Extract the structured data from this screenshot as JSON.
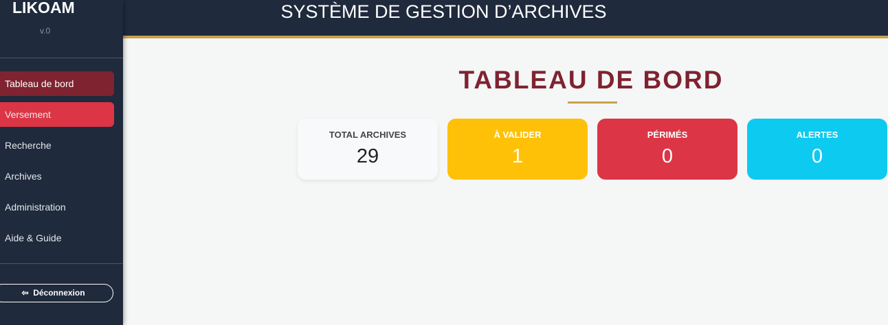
{
  "sidebar": {
    "logo": "LIKOAM",
    "version": "v.0",
    "items": [
      {
        "label": "Tableau de bord"
      },
      {
        "label": "Versement"
      },
      {
        "label": "Recherche"
      },
      {
        "label": "Archives"
      },
      {
        "label": "Administration"
      },
      {
        "label": "Aide & Guide"
      }
    ],
    "logout_label": "Déconnexion"
  },
  "header": {
    "title": "SYSTÈME DE GESTION D’ARCHIVES"
  },
  "main": {
    "title": "TABLEAU DE BORD",
    "cards": [
      {
        "label": "TOTAL ARCHIVES",
        "value": "29",
        "color": "#f8f9fa"
      },
      {
        "label": "À VALIDER",
        "value": "1",
        "color": "#ffc107"
      },
      {
        "label": "PÉRIMÉS",
        "value": "0",
        "color": "#dc3545"
      },
      {
        "label": "ALERTES",
        "value": "0",
        "color": "#0dcaf0"
      }
    ]
  }
}
